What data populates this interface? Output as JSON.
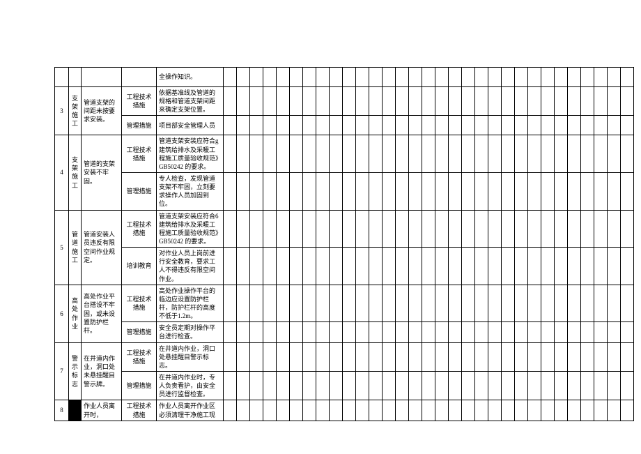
{
  "blank_cols": 31,
  "rows": [
    {
      "num": "",
      "cat": "",
      "issue": "",
      "sub": [
        {
          "meas": "",
          "desc": "全操作知识。",
          "h": "short"
        }
      ],
      "num_rowspan": 1,
      "cat_rowspan": 1,
      "issue_rowspan": 1,
      "show_num": false,
      "show_cat": false,
      "show_issue": false
    },
    {
      "num": "3",
      "cat": "支架施工",
      "issue": "管道支架的间距未按要求安装。",
      "sub": [
        {
          "meas": "工程技术措施",
          "desc": "依据基准线及管道的规格和管道支架间距来确定支架位置。",
          "h": "mid"
        },
        {
          "meas": "管理措施",
          "desc": "项目部安全管理人员",
          "h": "short"
        }
      ],
      "num_rowspan": 2,
      "cat_rowspan": 2,
      "issue_rowspan": 2,
      "show_num": true,
      "show_cat": true,
      "show_issue": true
    },
    {
      "num": "4",
      "cat": "支架施工",
      "issue": "管道的支架安装不牢固。",
      "sub": [
        {
          "meas": "工程技术措施",
          "desc": "管道支架安装应符合g建筑给排水及采暖工程施工质量验收规范》GB50242 的要求。",
          "h": "tall"
        },
        {
          "meas": "管理措施",
          "desc": "专人检查，发现管道支架不牢固，立刻要求操作人员加固到位。",
          "h": "mid"
        }
      ],
      "num_rowspan": 2,
      "cat_rowspan": 2,
      "issue_rowspan": 2,
      "show_num": true,
      "show_cat": true,
      "show_issue": true
    },
    {
      "num": "5",
      "cat": "管道施工",
      "issue": "管道安装人员违反有限空间作业规定。",
      "sub": [
        {
          "meas": "工程技术措施",
          "desc": "管道支架安装应符合6建筑给排水及采暖工程施工质量验收规范》GB50242 的要求。",
          "h": "tall"
        },
        {
          "meas": "培训教育",
          "desc": "对作业人员上岗前进行安全教育，要求工人不得违反有限空间作业。",
          "h": "mid"
        }
      ],
      "num_rowspan": 2,
      "cat_rowspan": 2,
      "issue_rowspan": 2,
      "show_num": true,
      "show_cat": true,
      "show_issue": true
    },
    {
      "num": "6",
      "cat": "高处作业",
      "issue": "高处作业平台搭设不牢固，或未设置防护栏杆。",
      "sub": [
        {
          "meas": "工程技术措施",
          "desc": "高处作业操作平台的临边应设置防护栏杆，防护栏杆的高度不低于1.2m。",
          "h": "tall"
        },
        {
          "meas": "管理措施",
          "desc": "安全员定期对操作平台进行检查。",
          "h": "short"
        }
      ],
      "num_rowspan": 2,
      "cat_rowspan": 2,
      "issue_rowspan": 2,
      "show_num": true,
      "show_cat": true,
      "show_issue": true
    },
    {
      "num": "7",
      "cat": "警示标志",
      "issue": "在井道内作业，洞口处未悬挂醒目警示牌。",
      "sub": [
        {
          "meas": "工程技术措施",
          "desc": "在井道内作业，洞口处悬挂醒目警示标志。",
          "h": "short"
        },
        {
          "meas": "管理措施",
          "desc": "在井道内作业时，专人负责看护，由安全员进行监督检查。",
          "h": "mid"
        }
      ],
      "num_rowspan": 2,
      "cat_rowspan": 2,
      "issue_rowspan": 2,
      "show_num": true,
      "show_cat": true,
      "show_issue": true
    },
    {
      "num": "8",
      "cat": "",
      "issue": "作业人员离开时，",
      "sub": [
        {
          "meas": "工程技术措施",
          "desc": "作业人员离开作业区必须清理干净施工现",
          "h": "short"
        }
      ],
      "num_rowspan": 1,
      "cat_rowspan": 1,
      "issue_rowspan": 1,
      "show_num": true,
      "show_cat": true,
      "show_issue": true,
      "cat_black": true
    }
  ]
}
